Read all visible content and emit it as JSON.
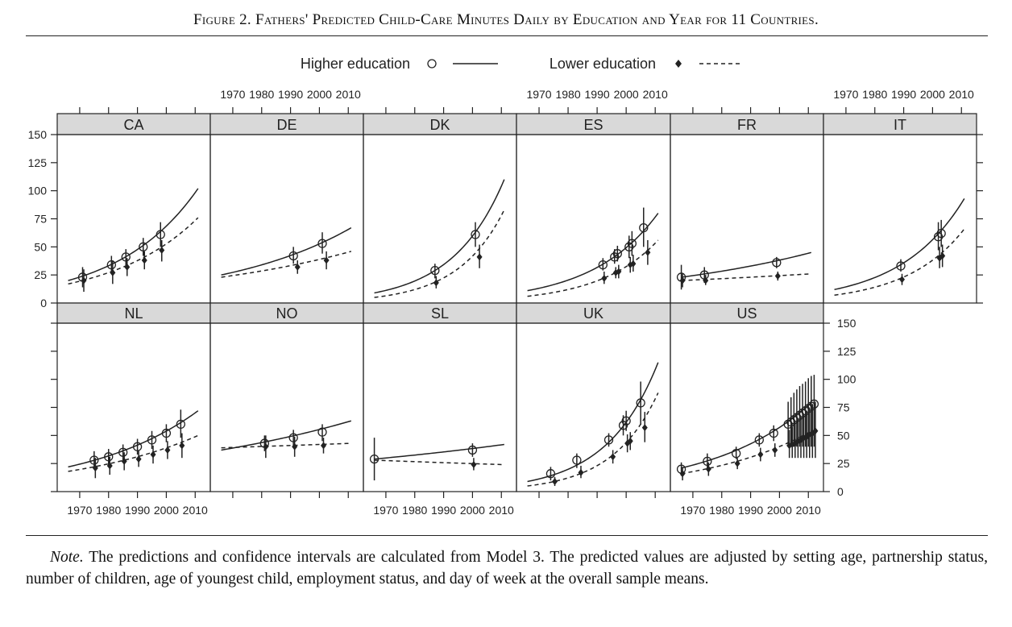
{
  "figure": {
    "title": "Figure 2. Fathers' Predicted Child-Care Minutes Daily by Education and Year for 11 Countries.",
    "note_label": "Note.",
    "note_text": " The predictions and confidence intervals are calculated from Model 3. The predicted values are adjusted by setting age, partnership status, number of children, age of youngest child, employment status, and day of week at the overall sample means."
  },
  "legend": {
    "higher_label": "Higher education",
    "lower_label": "Lower education",
    "higher_marker": "open-circle",
    "lower_marker": "filled-diamond",
    "higher_line": "solid",
    "lower_line": "dashed"
  },
  "chart_data": {
    "type": "line",
    "title": "",
    "xlabel": "",
    "ylabel": "",
    "xlim": [
      1965,
      2013
    ],
    "ylim": [
      0,
      150
    ],
    "x_ticks": [
      1970,
      1980,
      1990,
      2000,
      2010
    ],
    "y_ticks": [
      0,
      25,
      50,
      75,
      100,
      125,
      150
    ],
    "grid": false,
    "legend_position": "top-center",
    "colors": {
      "ink": "#222222",
      "strip": "#d9d9d9"
    },
    "panels": [
      {
        "name": "CA",
        "higher_curve": [
          [
            1966,
            20
          ],
          [
            2011,
            102
          ]
        ],
        "lower_curve": [
          [
            1966,
            17
          ],
          [
            2011,
            76
          ]
        ],
        "higher_points": [
          [
            1971,
            23,
            14,
            32
          ],
          [
            1981,
            34,
            26,
            42
          ],
          [
            1986,
            41,
            33,
            48
          ],
          [
            1992,
            50,
            42,
            58
          ],
          [
            1998,
            61,
            50,
            72
          ]
        ],
        "lower_points": [
          [
            1971,
            20,
            10,
            30
          ],
          [
            1981,
            27,
            17,
            38
          ],
          [
            1986,
            32,
            24,
            40
          ],
          [
            1992,
            38,
            30,
            46
          ],
          [
            1998,
            47,
            37,
            56
          ]
        ]
      },
      {
        "name": "DE",
        "higher_curve": [
          [
            1966,
            25
          ],
          [
            2011,
            67
          ]
        ],
        "lower_curve": [
          [
            1966,
            23
          ],
          [
            2011,
            46
          ]
        ],
        "higher_points": [
          [
            1991,
            42,
            35,
            50
          ],
          [
            2001,
            53,
            44,
            63
          ]
        ],
        "lower_points": [
          [
            1992,
            32,
            26,
            38
          ],
          [
            2002,
            38,
            30,
            46
          ]
        ]
      },
      {
        "name": "DK",
        "higher_curve": [
          [
            1966,
            9
          ],
          [
            2011,
            110
          ]
        ],
        "lower_curve": [
          [
            1966,
            5
          ],
          [
            2011,
            83
          ]
        ],
        "higher_points": [
          [
            1987,
            29,
            22,
            35
          ],
          [
            2001,
            61,
            50,
            72
          ]
        ],
        "lower_points": [
          [
            1987,
            18,
            13,
            24
          ],
          [
            2002,
            41,
            31,
            52
          ]
        ]
      },
      {
        "name": "ES",
        "higher_curve": [
          [
            1966,
            11
          ],
          [
            2011,
            80
          ]
        ],
        "lower_curve": [
          [
            1966,
            6
          ],
          [
            2011,
            56
          ]
        ],
        "higher_points": [
          [
            1992,
            34,
            29,
            40
          ],
          [
            1996,
            41,
            35,
            48
          ],
          [
            1997,
            44,
            37,
            51
          ],
          [
            2001,
            50,
            40,
            60
          ],
          [
            2002,
            53,
            42,
            64
          ],
          [
            2006,
            67,
            50,
            85
          ]
        ],
        "lower_points": [
          [
            1992,
            22,
            17,
            28
          ],
          [
            1996,
            27,
            22,
            32
          ],
          [
            1997,
            28,
            22,
            34
          ],
          [
            2001,
            34,
            27,
            41
          ],
          [
            2002,
            35,
            28,
            43
          ],
          [
            2007,
            45,
            34,
            56
          ]
        ]
      },
      {
        "name": "FR",
        "higher_curve": [
          [
            1966,
            23
          ],
          [
            2011,
            45
          ]
        ],
        "lower_curve": [
          [
            1966,
            20
          ],
          [
            2011,
            26
          ]
        ],
        "higher_points": [
          [
            1966,
            23,
            12,
            34
          ],
          [
            1974,
            25,
            18,
            32
          ],
          [
            1999,
            36,
            31,
            41
          ]
        ],
        "lower_points": [
          [
            1966,
            20,
            14,
            26
          ],
          [
            1974,
            20,
            16,
            25
          ],
          [
            1999,
            24,
            20,
            28
          ]
        ]
      },
      {
        "name": "IT",
        "higher_curve": [
          [
            1966,
            12
          ],
          [
            2011,
            93
          ]
        ],
        "lower_curve": [
          [
            1966,
            7
          ],
          [
            2011,
            66
          ]
        ],
        "higher_points": [
          [
            1989,
            33,
            28,
            39
          ],
          [
            2002,
            59,
            47,
            72
          ],
          [
            2003,
            62,
            50,
            74
          ]
        ],
        "lower_points": [
          [
            1989,
            21,
            16,
            26
          ],
          [
            2002,
            40,
            31,
            50
          ],
          [
            2003,
            42,
            32,
            52
          ]
        ]
      },
      {
        "name": "NL",
        "higher_curve": [
          [
            1966,
            22
          ],
          [
            2011,
            72
          ]
        ],
        "lower_curve": [
          [
            1966,
            18
          ],
          [
            2011,
            50
          ]
        ],
        "higher_points": [
          [
            1975,
            28,
            20,
            36
          ],
          [
            1980,
            31,
            24,
            38
          ],
          [
            1985,
            35,
            28,
            42
          ],
          [
            1990,
            40,
            33,
            47
          ],
          [
            1995,
            46,
            38,
            54
          ],
          [
            2000,
            52,
            44,
            60
          ],
          [
            2005,
            60,
            48,
            73
          ]
        ],
        "lower_points": [
          [
            1975,
            21,
            12,
            30
          ],
          [
            1980,
            23,
            15,
            31
          ],
          [
            1985,
            27,
            19,
            35
          ],
          [
            1990,
            29,
            22,
            37
          ],
          [
            1995,
            33,
            25,
            41
          ],
          [
            2000,
            37,
            29,
            45
          ],
          [
            2005,
            41,
            30,
            52
          ]
        ]
      },
      {
        "name": "NO",
        "higher_curve": [
          [
            1966,
            37
          ],
          [
            2011,
            63
          ]
        ],
        "lower_curve": [
          [
            1966,
            39
          ],
          [
            2011,
            43
          ]
        ],
        "higher_points": [
          [
            1981,
            43,
            36,
            50
          ],
          [
            1991,
            48,
            41,
            55
          ],
          [
            2001,
            53,
            45,
            60
          ]
        ],
        "lower_points": [
          [
            1981,
            40,
            30,
            50
          ],
          [
            1991,
            40,
            31,
            49
          ],
          [
            2001,
            41,
            34,
            48
          ]
        ]
      },
      {
        "name": "SL",
        "higher_curve": [
          [
            1966,
            29
          ],
          [
            2011,
            42
          ]
        ],
        "lower_curve": [
          [
            1966,
            28
          ],
          [
            2011,
            24
          ]
        ],
        "higher_points": [
          [
            1966,
            29,
            10,
            48
          ],
          [
            2000,
            37,
            31,
            43
          ]
        ],
        "lower_points": [
          [
            2000,
            24,
            19,
            30
          ]
        ]
      },
      {
        "name": "UK",
        "higher_curve": [
          [
            1966,
            9
          ],
          [
            2011,
            115
          ]
        ],
        "lower_curve": [
          [
            1966,
            5
          ],
          [
            2011,
            88
          ]
        ],
        "higher_points": [
          [
            1974,
            16,
            10,
            22
          ],
          [
            1983,
            28,
            21,
            34
          ],
          [
            1994,
            46,
            40,
            52
          ],
          [
            1999,
            59,
            50,
            68
          ],
          [
            2000,
            63,
            54,
            72
          ],
          [
            2005,
            79,
            60,
            98
          ]
        ],
        "lower_points": [
          [
            1975,
            9,
            5,
            13
          ],
          [
            1984,
            17,
            12,
            23
          ],
          [
            1995,
            31,
            25,
            37
          ],
          [
            2000,
            43,
            35,
            51
          ],
          [
            2001,
            45,
            37,
            53
          ],
          [
            2006,
            57,
            44,
            71
          ]
        ]
      },
      {
        "name": "US",
        "higher_curve": [
          [
            1966,
            21
          ],
          [
            2011,
            79
          ]
        ],
        "lower_curve": [
          [
            1966,
            16
          ],
          [
            2011,
            54
          ]
        ],
        "higher_points": [
          [
            1966,
            20,
            14,
            26
          ],
          [
            1975,
            27,
            20,
            34
          ],
          [
            1985,
            34,
            29,
            40
          ],
          [
            1993,
            46,
            40,
            52
          ],
          [
            1998,
            52,
            45,
            59
          ],
          [
            2003,
            60,
            40,
            80
          ],
          [
            2004,
            62,
            40,
            84
          ],
          [
            2005,
            64,
            40,
            88
          ],
          [
            2006,
            66,
            40,
            91
          ],
          [
            2007,
            68,
            40,
            94
          ],
          [
            2008,
            70,
            40,
            96
          ],
          [
            2009,
            72,
            40,
            98
          ],
          [
            2010,
            74,
            40,
            101
          ],
          [
            2011,
            76,
            40,
            103
          ],
          [
            2012,
            78,
            40,
            104
          ]
        ],
        "lower_points": [
          [
            1966,
            16,
            10,
            22
          ],
          [
            1975,
            20,
            14,
            26
          ],
          [
            1985,
            25,
            20,
            30
          ],
          [
            1993,
            33,
            27,
            39
          ],
          [
            1998,
            37,
            31,
            43
          ],
          [
            2003,
            41,
            30,
            55
          ],
          [
            2004,
            42,
            30,
            58
          ],
          [
            2005,
            43,
            30,
            61
          ],
          [
            2006,
            45,
            30,
            64
          ],
          [
            2007,
            46,
            30,
            66
          ],
          [
            2008,
            48,
            30,
            69
          ],
          [
            2009,
            49,
            30,
            72
          ],
          [
            2010,
            51,
            30,
            75
          ],
          [
            2011,
            52,
            30,
            78
          ],
          [
            2012,
            54,
            30,
            80
          ]
        ]
      }
    ]
  }
}
